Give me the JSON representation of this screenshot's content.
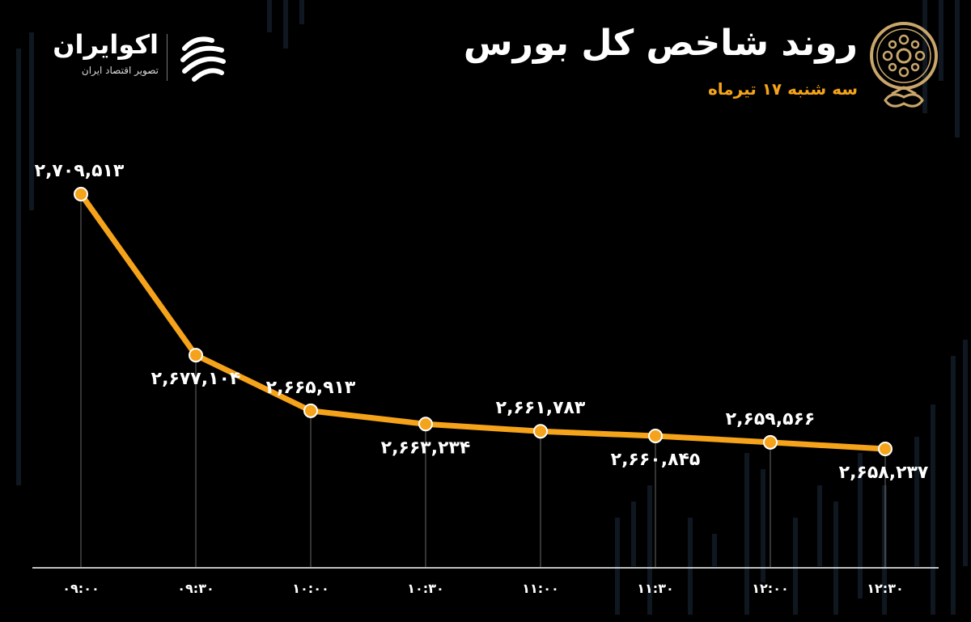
{
  "header": {
    "title": "روند شاخص کل بورس",
    "subtitle": "سه شنبه ۱۷ تیرماه"
  },
  "brand": {
    "name": "اکوایران",
    "tagline": "تصویر اقتصاد ایران"
  },
  "colors": {
    "background": "#000000",
    "line": "#f5a31a",
    "marker_fill": "#f5a31a",
    "marker_stroke": "#ffffff",
    "label_text": "#ffffff",
    "guide_line": "#bdbdbd",
    "accent": "#f5a31a"
  },
  "chart_data": {
    "type": "line",
    "title": "روند شاخص کل بورس",
    "subtitle": "سه شنبه ۱۷ تیرماه",
    "xlabel": "",
    "ylabel": "",
    "categories": [
      "۰۹:۰۰",
      "۰۹:۳۰",
      "۱۰:۰۰",
      "۱۰:۳۰",
      "۱۱:۰۰",
      "۱۱:۳۰",
      "۱۲:۰۰",
      "۱۲:۳۰"
    ],
    "values": [
      2709513,
      2677104,
      2665913,
      2663234,
      2661783,
      2660845,
      2659566,
      2658237
    ],
    "value_labels": [
      "۲,۷۰۹,۵۱۳",
      "۲,۶۷۷,۱۰۴",
      "۲,۶۶۵,۹۱۳",
      "۲,۶۶۳,۲۳۴",
      "۲,۶۶۱,۷۸۳",
      "۲,۶۶۰,۸۴۵",
      "۲,۶۵۹,۵۶۶",
      "۲,۶۵۸,۲۳۷"
    ],
    "label_side": [
      "above",
      "below",
      "above",
      "below",
      "above",
      "below",
      "above",
      "below"
    ],
    "grid": false,
    "legend": "none"
  }
}
